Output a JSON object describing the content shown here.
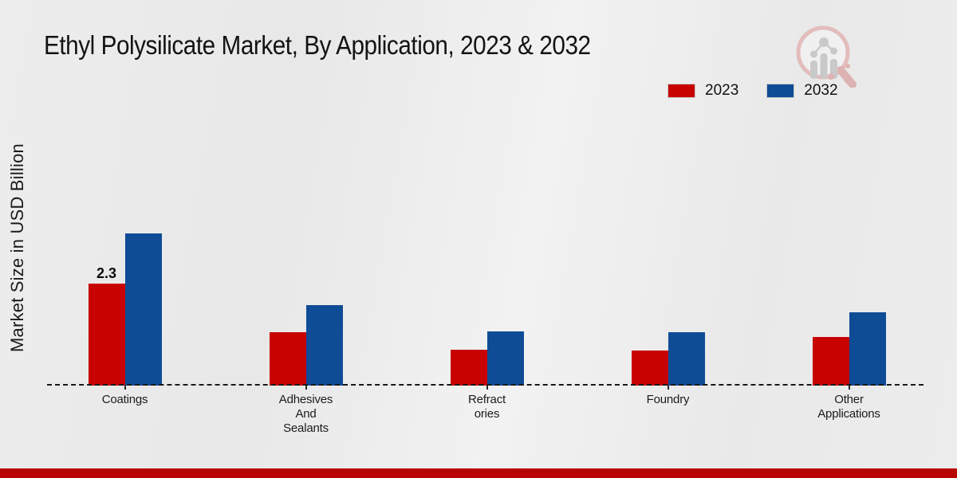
{
  "page": {
    "background_color": "#eaeaea",
    "footer_bar_color": "#b90404"
  },
  "header": {
    "title": "Ethyl Polysilicate Market, By Application, 2023 & 2032"
  },
  "logo": {
    "description": "magnifying glass with bar chart watermark",
    "ring_color": "#e3bcbc",
    "bars_color": "#c9c9c9"
  },
  "chart_data": {
    "type": "bar",
    "title": "Ethyl Polysilicate Market, By Application, 2023 & 2032",
    "xlabel": "",
    "ylabel": "Market Size in USD Billion",
    "categories": [
      "Coatings",
      "Adhesives And Sealants",
      "Refractories",
      "Foundry",
      "Other Applications"
    ],
    "category_label_lines": [
      [
        "Coatings"
      ],
      [
        "Adhesives",
        "And",
        "Sealants"
      ],
      [
        "Refract",
        "ories"
      ],
      [
        "Foundry"
      ],
      [
        "Other",
        "Applications"
      ]
    ],
    "series": [
      {
        "name": "2023",
        "color": "#c80101",
        "values": [
          2.3,
          1.2,
          0.81,
          0.79,
          1.1
        ]
      },
      {
        "name": "2032",
        "color": "#0f4c96",
        "values": [
          3.43,
          1.82,
          1.22,
          1.2,
          1.65
        ]
      }
    ],
    "annotations": [
      {
        "series_index": 0,
        "category_index": 0,
        "text": "2.3"
      }
    ],
    "ylim": [
      0,
      3.67
    ],
    "grid": false,
    "legend_position": "top-right",
    "baseline_style": "dashed",
    "y_axis_ticks_visible": false
  }
}
